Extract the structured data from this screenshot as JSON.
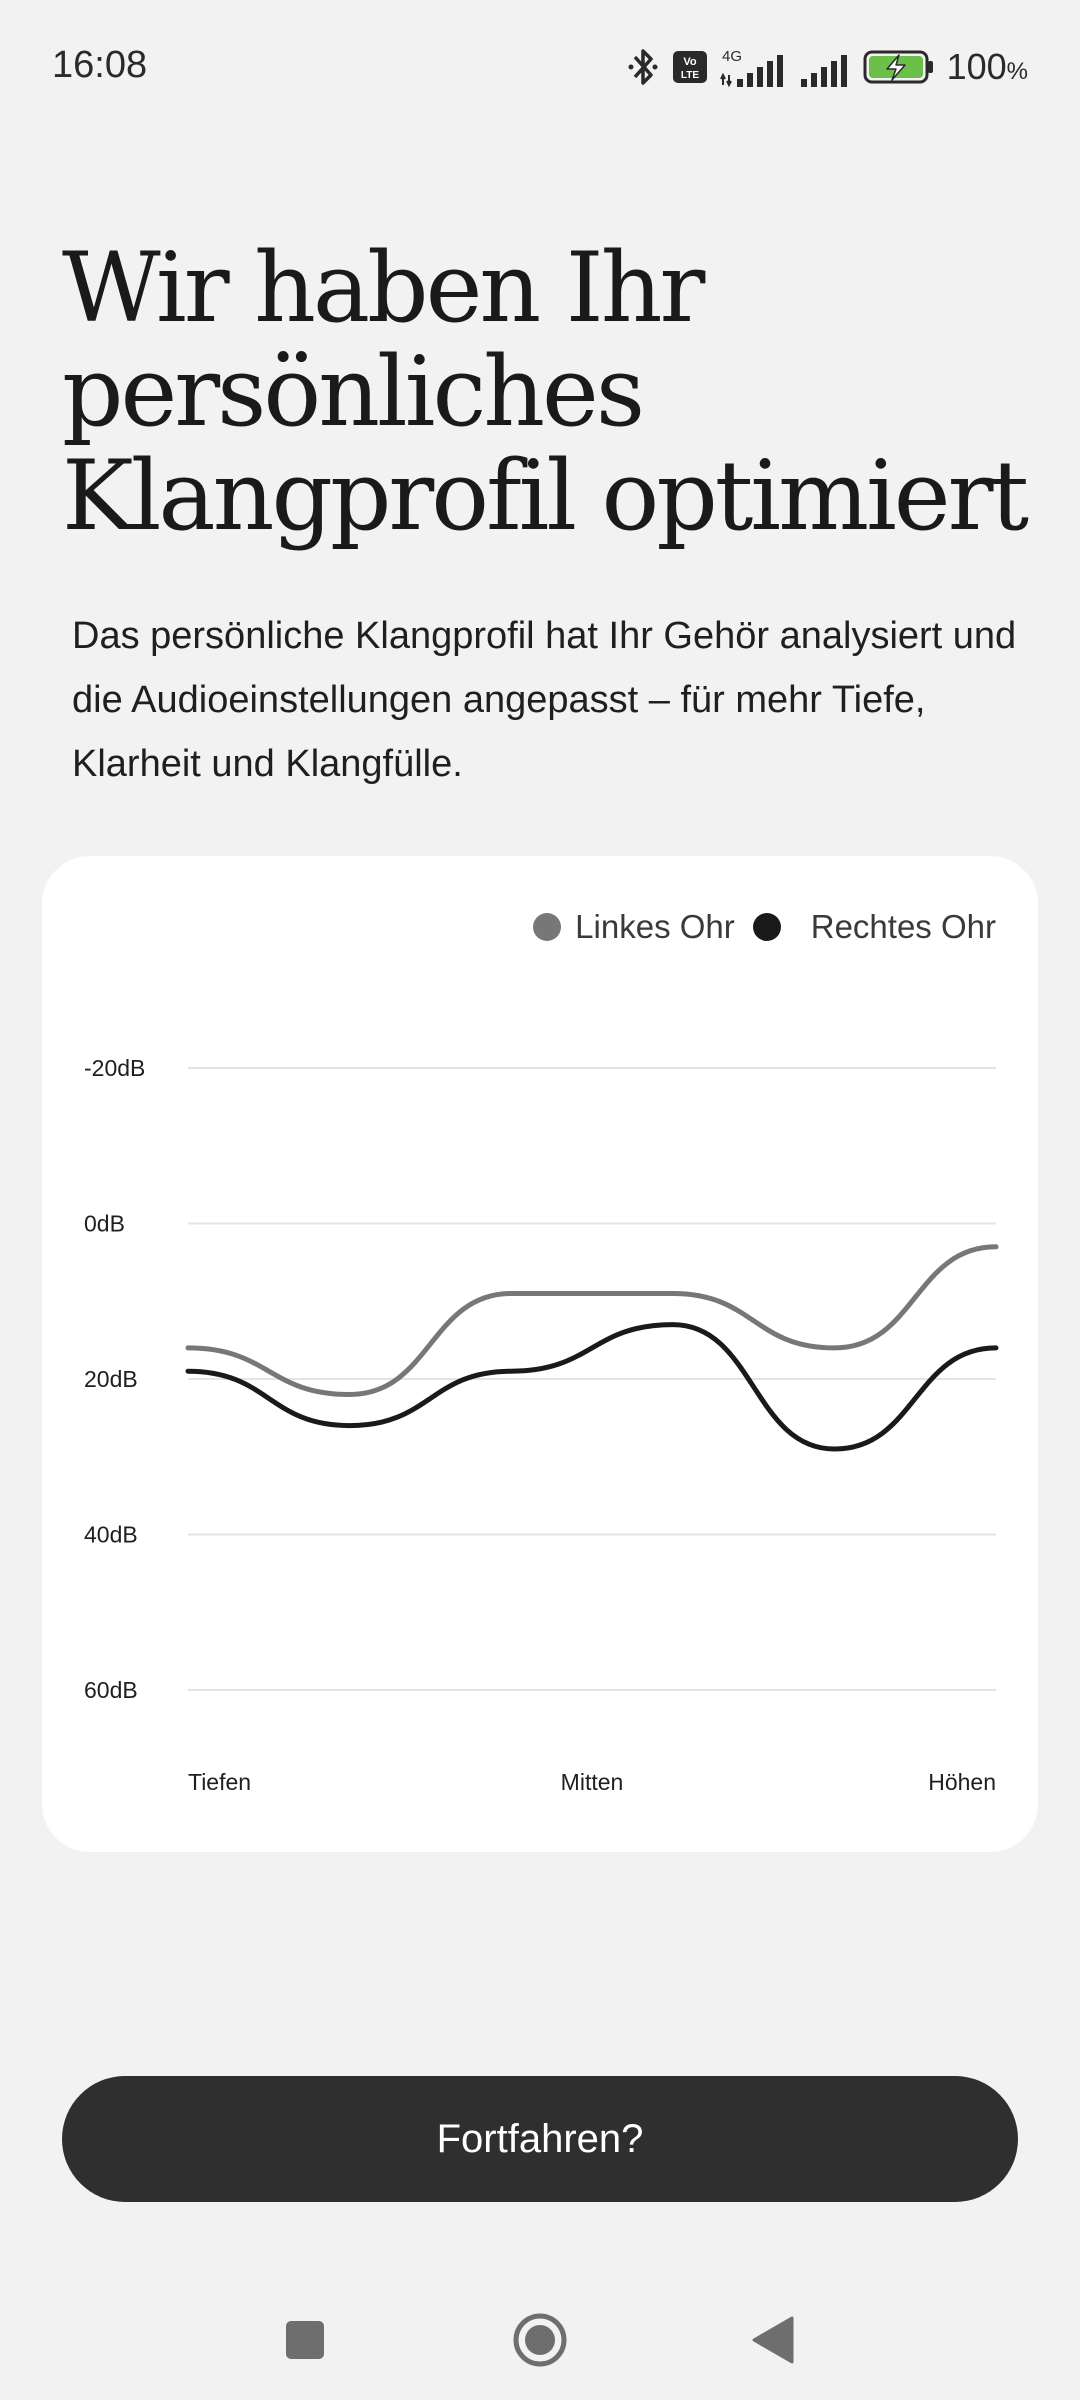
{
  "status_bar": {
    "time": "16:08",
    "network": "4G",
    "volte": "Vo LTE",
    "battery_percent": "100",
    "battery_unit": "%",
    "icons": [
      "bluetooth-icon",
      "volte-icon",
      "signal-icon",
      "signal-icon",
      "battery-charging-icon"
    ],
    "battery_color": "#6cc04a"
  },
  "headline": {
    "line1": "Wir haben Ihr",
    "line2": "persönliches",
    "line3": "Klangprofil optimiert"
  },
  "subtitle": "Das persönliche Klangprofil hat Ihr Gehör analysiert und die Audioeinstellungen angepasst – für mehr Tiefe, Klarheit und Klangfülle.",
  "chart_data": {
    "type": "line",
    "title": "",
    "xlabel": "",
    "ylabel": "",
    "categories": [
      "Tiefen",
      "Mitten",
      "Höhen"
    ],
    "y_ticks": [
      "-20dB",
      "0dB",
      "20dB",
      "40dB",
      "60dB"
    ],
    "ylim": [
      -20,
      60
    ],
    "y_inverted": true,
    "grid": true,
    "legend_position": "top-right",
    "x": [
      0,
      0.2,
      0.4,
      0.6,
      0.8,
      1.0
    ],
    "series": [
      {
        "name": "Linkes Ohr",
        "color": "#777777",
        "values": [
          16,
          22,
          9,
          9,
          16,
          3
        ]
      },
      {
        "name": "Rechtes Ohr",
        "color": "#1a1a1a",
        "values": [
          19,
          26,
          19,
          13,
          29,
          16
        ]
      }
    ]
  },
  "cta": {
    "label": "Fortfahren?"
  },
  "nav_bar": {
    "icons": [
      "recents-square-icon",
      "home-circle-icon",
      "back-triangle-icon"
    ],
    "color": "#6e6e6e"
  }
}
